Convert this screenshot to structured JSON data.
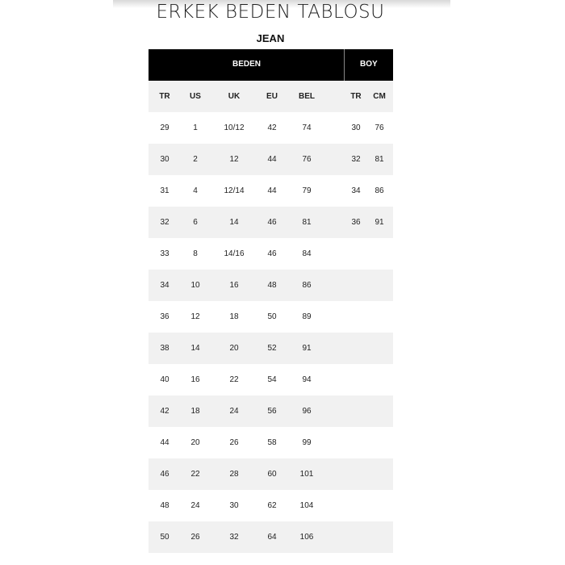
{
  "title": "ERKEK BEDEN TABLOSU",
  "subtitle": "JEAN",
  "groups": {
    "beden": "BEDEN",
    "boy": "BOY"
  },
  "columns": [
    "TR",
    "US",
    "UK",
    "EU",
    "BEL",
    "TR",
    "CM"
  ],
  "rows": [
    [
      "29",
      "1",
      "10/12",
      "42",
      "74",
      "30",
      "76"
    ],
    [
      "30",
      "2",
      "12",
      "44",
      "76",
      "32",
      "81"
    ],
    [
      "31",
      "4",
      "12/14",
      "44",
      "79",
      "34",
      "86"
    ],
    [
      "32",
      "6",
      "14",
      "46",
      "81",
      "36",
      "91"
    ],
    [
      "33",
      "8",
      "14/16",
      "46",
      "84",
      "",
      ""
    ],
    [
      "34",
      "10",
      "16",
      "48",
      "86",
      "",
      ""
    ],
    [
      "36",
      "12",
      "18",
      "50",
      "89",
      "",
      ""
    ],
    [
      "38",
      "14",
      "20",
      "52",
      "91",
      "",
      ""
    ],
    [
      "40",
      "16",
      "22",
      "54",
      "94",
      "",
      ""
    ],
    [
      "42",
      "18",
      "24",
      "56",
      "96",
      "",
      ""
    ],
    [
      "44",
      "20",
      "26",
      "58",
      "99",
      "",
      ""
    ],
    [
      "46",
      "22",
      "28",
      "60",
      "101",
      "",
      ""
    ],
    [
      "48",
      "24",
      "30",
      "62",
      "104",
      "",
      ""
    ],
    [
      "50",
      "26",
      "32",
      "64",
      "106",
      "",
      ""
    ]
  ]
}
